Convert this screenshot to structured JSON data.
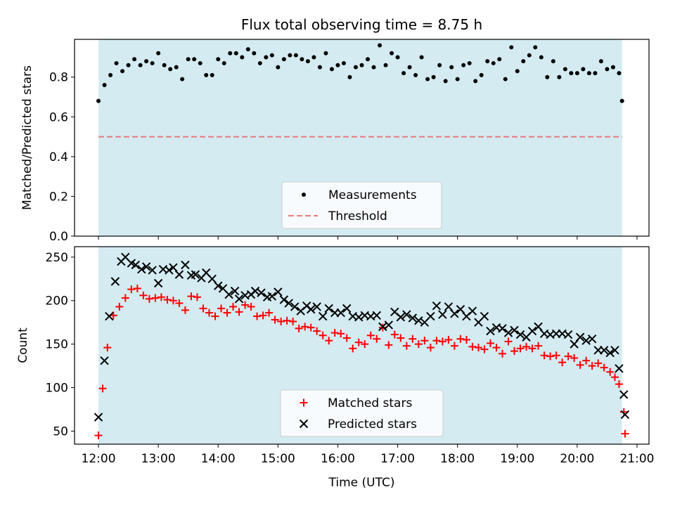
{
  "chart_data": [
    {
      "type": "scatter",
      "title": "Flux total observing time = 8.75 h",
      "xlabel": "",
      "ylabel": "Matched/Predicted stars",
      "x_unit": "hours UTC",
      "xlim": [
        11.6,
        21.2
      ],
      "ylim": [
        0.0,
        0.99
      ],
      "yticks": [
        0.0,
        0.2,
        0.4,
        0.6,
        0.8
      ],
      "ytick_labels": [
        "0.0",
        "0.2",
        "0.4",
        "0.6",
        "0.8"
      ],
      "shaded_span": [
        12.0,
        20.75
      ],
      "shade_color": "#add8e6",
      "legend": {
        "location": "lower center",
        "entries": [
          "Measurements",
          "Threshold"
        ]
      },
      "series": [
        {
          "name": "Measurements",
          "marker": "dot",
          "color": "#000000",
          "x": [
            12.0,
            12.1,
            12.2,
            12.3,
            12.4,
            12.5,
            12.6,
            12.7,
            12.8,
            12.9,
            13.0,
            13.1,
            13.2,
            13.3,
            13.4,
            13.5,
            13.6,
            13.7,
            13.8,
            13.9,
            14.0,
            14.1,
            14.2,
            14.3,
            14.4,
            14.5,
            14.6,
            14.7,
            14.8,
            14.9,
            15.0,
            15.1,
            15.2,
            15.3,
            15.4,
            15.5,
            15.6,
            15.7,
            15.8,
            15.9,
            16.0,
            16.1,
            16.2,
            16.3,
            16.4,
            16.5,
            16.6,
            16.7,
            16.8,
            16.9,
            17.0,
            17.1,
            17.2,
            17.3,
            17.4,
            17.5,
            17.6,
            17.7,
            17.8,
            17.9,
            18.0,
            18.1,
            18.2,
            18.3,
            18.4,
            18.5,
            18.6,
            18.7,
            18.8,
            18.9,
            19.0,
            19.1,
            19.2,
            19.3,
            19.4,
            19.5,
            19.6,
            19.7,
            19.8,
            19.9,
            20.0,
            20.1,
            20.2,
            20.3,
            20.4,
            20.5,
            20.6,
            20.7,
            20.75
          ],
          "y": [
            0.68,
            0.76,
            0.81,
            0.87,
            0.83,
            0.86,
            0.89,
            0.86,
            0.88,
            0.87,
            0.92,
            0.86,
            0.84,
            0.85,
            0.79,
            0.89,
            0.89,
            0.87,
            0.81,
            0.81,
            0.89,
            0.87,
            0.92,
            0.92,
            0.9,
            0.94,
            0.92,
            0.87,
            0.9,
            0.91,
            0.85,
            0.89,
            0.91,
            0.91,
            0.89,
            0.88,
            0.9,
            0.85,
            0.92,
            0.84,
            0.86,
            0.87,
            0.8,
            0.85,
            0.86,
            0.89,
            0.85,
            0.96,
            0.86,
            0.92,
            0.9,
            0.82,
            0.85,
            0.81,
            0.9,
            0.79,
            0.8,
            0.86,
            0.78,
            0.85,
            0.79,
            0.86,
            0.87,
            0.78,
            0.81,
            0.88,
            0.87,
            0.89,
            0.79,
            0.95,
            0.83,
            0.88,
            0.91,
            0.95,
            0.9,
            0.8,
            0.88,
            0.8,
            0.84,
            0.82,
            0.82,
            0.84,
            0.82,
            0.82,
            0.88,
            0.84,
            0.85,
            0.82,
            0.68
          ]
        },
        {
          "name": "Threshold",
          "style": "dashed",
          "color": "#e87a7a",
          "y": 0.5
        }
      ]
    },
    {
      "type": "scatter",
      "title": "",
      "xlabel": "Time (UTC)",
      "ylabel": "Count",
      "x_unit": "hours UTC",
      "xlim": [
        11.6,
        21.2
      ],
      "ylim": [
        35,
        262
      ],
      "xticks": [
        12,
        13,
        14,
        15,
        16,
        17,
        18,
        19,
        20,
        21
      ],
      "xtick_labels": [
        "12:00",
        "13:00",
        "14:00",
        "15:00",
        "16:00",
        "17:00",
        "18:00",
        "19:00",
        "20:00",
        "21:00"
      ],
      "yticks": [
        50,
        100,
        150,
        200,
        250
      ],
      "ytick_labels": [
        "50",
        "100",
        "150",
        "200",
        "250"
      ],
      "shaded_span": [
        12.0,
        20.75
      ],
      "shade_color": "#add8e6",
      "legend": {
        "location": "lower center",
        "entries": [
          "Matched stars",
          "Predicted stars"
        ]
      },
      "series": [
        {
          "name": "Matched stars",
          "marker": "plus",
          "color": "#ff0000",
          "x": [
            12.0,
            12.07,
            12.15,
            12.25,
            12.35,
            12.45,
            12.55,
            12.65,
            12.75,
            12.85,
            12.95,
            13.05,
            13.15,
            13.25,
            13.35,
            13.45,
            13.55,
            13.65,
            13.75,
            13.85,
            13.95,
            14.05,
            14.15,
            14.25,
            14.35,
            14.45,
            14.55,
            14.65,
            14.75,
            14.85,
            14.95,
            15.05,
            15.15,
            15.25,
            15.35,
            15.45,
            15.55,
            15.65,
            15.75,
            15.85,
            15.95,
            16.05,
            16.15,
            16.25,
            16.35,
            16.45,
            16.55,
            16.65,
            16.75,
            16.85,
            16.95,
            17.05,
            17.15,
            17.25,
            17.35,
            17.45,
            17.55,
            17.65,
            17.75,
            17.85,
            17.95,
            18.05,
            18.15,
            18.25,
            18.35,
            18.45,
            18.55,
            18.65,
            18.75,
            18.85,
            18.95,
            19.05,
            19.15,
            19.25,
            19.35,
            19.45,
            19.55,
            19.65,
            19.75,
            19.85,
            19.95,
            20.05,
            20.15,
            20.25,
            20.35,
            20.45,
            20.55,
            20.63,
            20.7,
            20.78
          ],
          "y": [
            45,
            99,
            146,
            183,
            193,
            203,
            213,
            214,
            206,
            202,
            203,
            204,
            201,
            200,
            197,
            189,
            205,
            204,
            191,
            186,
            182,
            191,
            186,
            193,
            187,
            195,
            193,
            182,
            183,
            186,
            178,
            176,
            177,
            176,
            168,
            170,
            169,
            165,
            160,
            154,
            163,
            162,
            157,
            145,
            152,
            150,
            160,
            156,
            169,
            149,
            161,
            157,
            148,
            156,
            150,
            154,
            146,
            154,
            153,
            155,
            148,
            156,
            155,
            147,
            146,
            144,
            151,
            146,
            139,
            153,
            142,
            145,
            147,
            145,
            148,
            137,
            136,
            137,
            129,
            136,
            134,
            126,
            131,
            125,
            128,
            123,
            118,
            112,
            104,
            72
          ],
          "last_point": {
            "x": 20.8,
            "y": 47
          }
        },
        {
          "name": "Predicted stars",
          "marker": "x",
          "color": "#000000",
          "x": [
            12.0,
            12.1,
            12.18,
            12.28,
            12.38,
            12.45,
            12.55,
            12.62,
            12.72,
            12.8,
            12.9,
            13.0,
            13.08,
            13.18,
            13.25,
            13.35,
            13.45,
            13.55,
            13.62,
            13.72,
            13.8,
            13.9,
            14.0,
            14.08,
            14.18,
            14.28,
            14.35,
            14.45,
            14.55,
            14.62,
            14.72,
            14.82,
            14.9,
            15.0,
            15.1,
            15.18,
            15.28,
            15.38,
            15.48,
            15.55,
            15.65,
            15.75,
            15.85,
            15.95,
            16.05,
            16.15,
            16.25,
            16.35,
            16.45,
            16.55,
            16.65,
            16.75,
            16.85,
            16.95,
            17.05,
            17.15,
            17.25,
            17.35,
            17.45,
            17.55,
            17.65,
            17.75,
            17.85,
            17.95,
            18.05,
            18.15,
            18.25,
            18.35,
            18.45,
            18.55,
            18.65,
            18.75,
            18.85,
            18.95,
            19.05,
            19.15,
            19.25,
            19.35,
            19.45,
            19.55,
            19.65,
            19.75,
            19.85,
            19.95,
            20.05,
            20.15,
            20.25,
            20.35,
            20.45,
            20.55,
            20.63,
            20.7,
            20.78
          ],
          "y": [
            66,
            131,
            182,
            222,
            245,
            250,
            243,
            241,
            236,
            239,
            235,
            220,
            236,
            235,
            238,
            230,
            241,
            229,
            230,
            226,
            232,
            225,
            217,
            214,
            207,
            211,
            202,
            206,
            207,
            211,
            209,
            204,
            205,
            210,
            201,
            197,
            193,
            188,
            194,
            190,
            193,
            182,
            191,
            186,
            186,
            191,
            182,
            181,
            183,
            182,
            183,
            170,
            172,
            187,
            181,
            184,
            180,
            177,
            175,
            182,
            194,
            184,
            193,
            185,
            190,
            182,
            188,
            175,
            182,
            165,
            169,
            168,
            163,
            166,
            161,
            158,
            165,
            170,
            162,
            161,
            162,
            162,
            161,
            150,
            158,
            154,
            156,
            143,
            143,
            140,
            143,
            122,
            92
          ],
          "last_point": {
            "x": 20.8,
            "y": 69
          }
        }
      ]
    }
  ]
}
